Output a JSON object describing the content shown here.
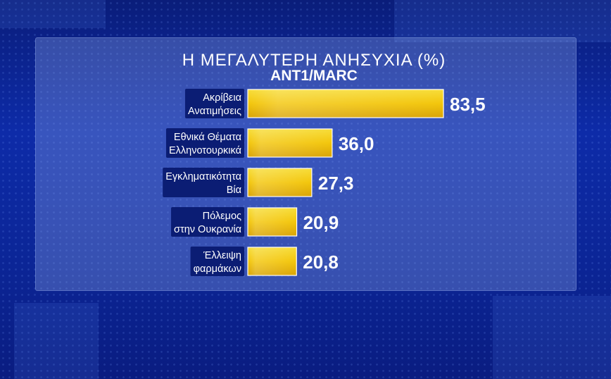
{
  "chart_data": {
    "type": "bar",
    "orientation": "horizontal",
    "title": "Η ΜΕΓΑΛΥΤΕΡΗ ΑΝΗΣΥΧΙΑ (%)",
    "subtitle": "ANT1/MARC",
    "categories": [
      [
        "Ακρίβεια",
        "Ανατιμήσεις"
      ],
      [
        "Εθνικά Θέματα",
        "Ελληνοτουρκικά"
      ],
      [
        "Εγκληματικότητα",
        "Βία"
      ],
      [
        "Πόλεμος",
        "στην Ουκρανία"
      ],
      [
        "Έλλειψη",
        "φαρμάκων"
      ]
    ],
    "values": [
      83.5,
      36.0,
      27.3,
      20.9,
      20.8
    ],
    "value_labels": [
      "83,5",
      "36,0",
      "27,3",
      "20,9",
      "20,8"
    ],
    "bar_color": "#f2c20a",
    "grid": false,
    "legend": "none"
  }
}
